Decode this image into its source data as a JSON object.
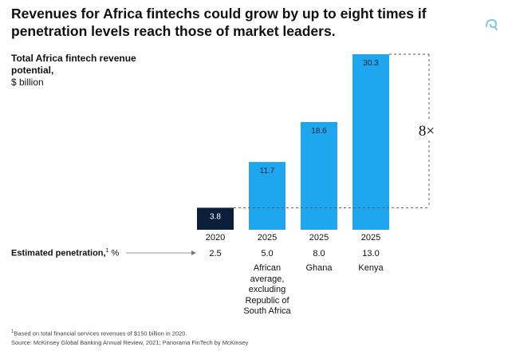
{
  "title": "Revenues for Africa fintechs could grow by up to eight times if penetration levels reach those of market leaders.",
  "subtitle_bold": "Total Africa fintech revenue potential,",
  "subtitle_unit": "$ billion",
  "penetration_label": "Estimated penetration,",
  "penetration_sup": "1",
  "penetration_unit": "%",
  "multiplier_label": "8×",
  "footnote_1": "Based on total financial services revenues of $150 billion in 2020.",
  "footnote_1_sup": "1",
  "footnote_2": "Source: McKinsey Global Banking Annual Review, 2021; Panorama FinTech by McKinsey",
  "colors": {
    "bar_dark": "#0b1e3a",
    "bar_blue": "#1ea7ee",
    "text": "#111111",
    "dash": "#555555"
  },
  "chart_data": {
    "type": "bar",
    "categories": [
      "2020",
      "2025",
      "2025",
      "2025"
    ],
    "values": [
      3.8,
      11.7,
      18.6,
      30.3
    ],
    "value_labels": [
      "3.8",
      "11.7",
      "18.6",
      "30.3"
    ],
    "penetration": [
      "2.5",
      "5.0",
      "8.0",
      "13.0"
    ],
    "notes": [
      [],
      [
        "African",
        "average,",
        "excluding",
        "Republic of",
        "South Africa"
      ],
      [
        "Ghana"
      ],
      [
        "Kenya"
      ]
    ],
    "bar_colors": [
      "#0b1e3a",
      "#1ea7ee",
      "#1ea7ee",
      "#1ea7ee"
    ],
    "ylim": [
      0,
      30.3
    ],
    "grid": false,
    "legend": "none"
  }
}
